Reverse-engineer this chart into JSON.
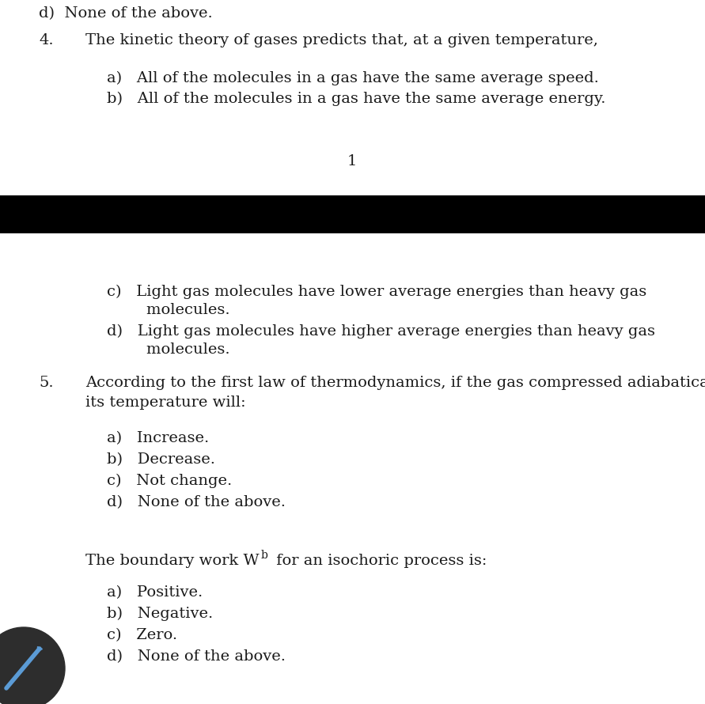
{
  "bg_color": "#ffffff",
  "text_color": "#1a1a1a",
  "black_bar_color": "#000000",
  "dark_circle_color": "#2d2d2d",
  "blue_icon_color": "#5b9bd5",
  "top_text": "d)  None of the above.",
  "q4_number": "4.",
  "q4_text": "The kinetic theory of gases predicts that, at a given temperature,",
  "q4_opt_a": "a)   All of the molecules in a gas have the same average speed.",
  "q4_opt_b": "b)   All of the molecules in a gas have the same average energy.",
  "page_number": "1",
  "q4_opt_c1": "c)   Light gas molecules have lower average energies than heavy gas",
  "q4_opt_c2": "        molecules.",
  "q4_opt_d1": "d)   Light gas molecules have higher average energies than heavy gas",
  "q4_opt_d2": "        molecules.",
  "q5_number": "5.",
  "q5_text1": "According to the first law of thermodynamics, if the gas compressed adiabatically",
  "q5_text2": "its temperature will:",
  "q5_opt_a": "a)   Increase.",
  "q5_opt_b": "b)   Decrease.",
  "q5_opt_c": "c)   Not change.",
  "q5_opt_d": "d)   None of the above.",
  "q6_text_before": "The boundary work W",
  "q6_subscript": "b",
  "q6_text_after": " for an isochoric process is:",
  "q6_opt_a": "a)   Positive.",
  "q6_opt_b": "b)   Negative.",
  "q6_opt_c": "c)   Zero.",
  "q6_opt_d": "d)   None of the above.",
  "font_size": 14,
  "font_family": "DejaVu Serif"
}
